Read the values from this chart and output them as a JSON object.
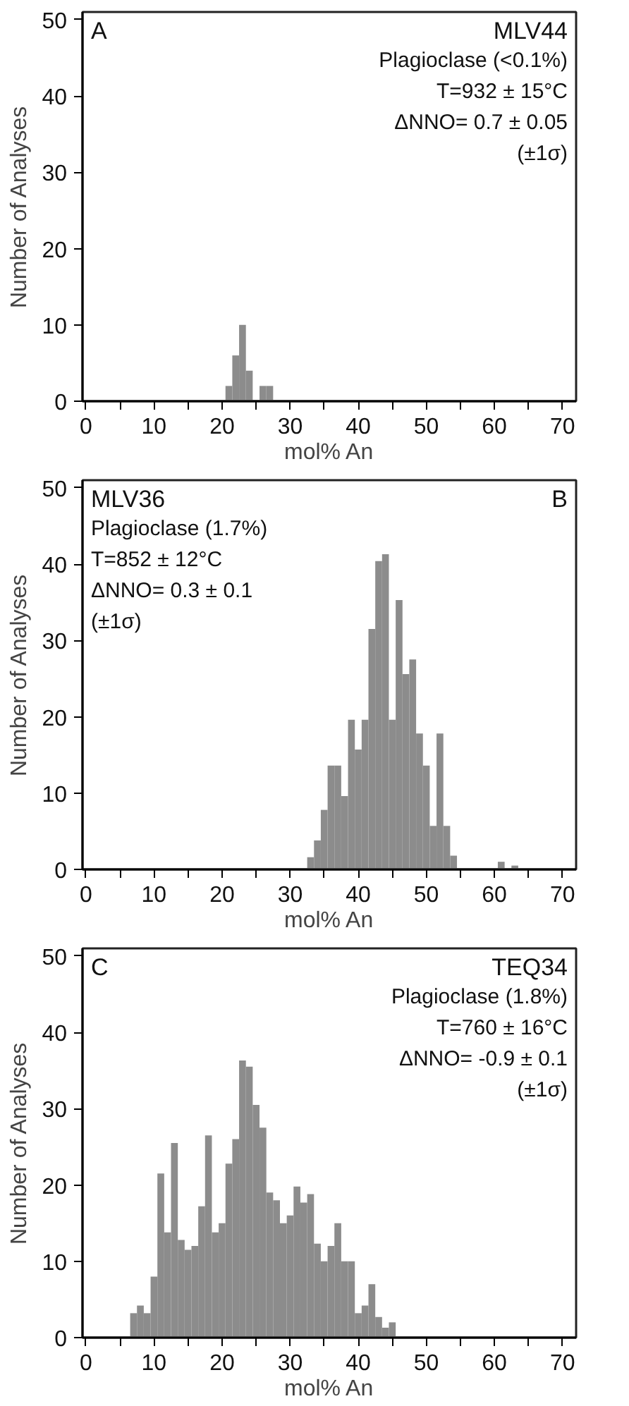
{
  "chart_data": [
    {
      "type": "histogram",
      "xlabel": "mol% An",
      "ylabel": "Number of Analyses",
      "color": "#8c8c8c",
      "bins": [
        20.5,
        21.5,
        22.5,
        23.5,
        24.5,
        25.5,
        26.5,
        27.5
      ],
      "values": [
        2,
        6,
        10,
        4,
        0,
        2,
        2
      ],
      "xlim": [
        -0.5,
        72
      ],
      "ylim": [
        0,
        51
      ],
      "xticks": [
        0,
        {
          "value": 5,
          "label": null
        },
        10,
        {
          "value": 15,
          "label": null
        },
        20,
        {
          "value": 25,
          "label": null
        },
        30,
        {
          "value": 35,
          "label": null
        },
        40,
        {
          "value": 45,
          "label": null
        },
        50,
        {
          "value": 55,
          "label": null
        },
        60,
        {
          "value": 65,
          "label": null
        },
        70
      ],
      "yticks": [
        0,
        10,
        20,
        30,
        40,
        50
      ],
      "grid": false,
      "annotations": [
        "A",
        "MLV44",
        "Plagioclase (<0.1%)",
        "T=932 ± 15°C",
        "ΔNNO= 0.7 ± 0.05",
        "(±1σ)"
      ]
    },
    {
      "type": "histogram",
      "xlabel": "mol% An",
      "ylabel": "Number of Analyses",
      "color": "#8c8c8c",
      "bins": [
        32.5,
        33.5,
        34.5,
        35.5,
        36.5,
        37.5,
        38.5,
        39.5,
        40.5,
        41.5,
        42.5,
        43.5,
        44.5,
        45.5,
        46.5,
        47.5,
        48.5,
        49.5,
        50.5,
        51.5,
        52.5,
        53.5,
        54.5,
        55.5,
        56.5,
        57.5,
        58.5,
        59.5,
        60.5,
        61.5,
        62.5,
        63.5
      ],
      "values": [
        1.6,
        3.8,
        7.8,
        13.6,
        13.6,
        9.6,
        19.6,
        15.7,
        19.6,
        31.5,
        40.4,
        41.3,
        19.6,
        35.3,
        25.6,
        27.5,
        17.8,
        13.6,
        5.7,
        17.8,
        5.7,
        1.8,
        0,
        0,
        0,
        0,
        0,
        0,
        1,
        0,
        0.5
      ],
      "xlim": [
        -0.5,
        72
      ],
      "ylim": [
        0,
        51
      ],
      "xticks": [
        0,
        {
          "value": 5,
          "label": null
        },
        10,
        {
          "value": 15,
          "label": null
        },
        20,
        {
          "value": 25,
          "label": null
        },
        30,
        {
          "value": 35,
          "label": null
        },
        40,
        {
          "value": 45,
          "label": null
        },
        50,
        {
          "value": 55,
          "label": null
        },
        60,
        {
          "value": 65,
          "label": null
        },
        70
      ],
      "yticks": [
        0,
        10,
        20,
        30,
        40,
        50
      ],
      "grid": false,
      "annotations": [
        "B",
        "MLV36",
        "Plagioclase (1.7%)",
        "T=852 ± 12°C",
        "ΔNNO= 0.3 ± 0.1",
        "(±1σ)"
      ]
    },
    {
      "type": "histogram",
      "xlabel": "mol% An",
      "ylabel": "Number of Analyses",
      "color": "#8c8c8c",
      "bins": [
        6.5,
        7.5,
        8.5,
        9.5,
        10.5,
        11.5,
        12.5,
        13.5,
        14.5,
        15.5,
        16.5,
        17.5,
        18.5,
        19.5,
        20.5,
        21.5,
        22.5,
        23.5,
        24.5,
        25.5,
        26.5,
        27.5,
        28.5,
        29.5,
        30.5,
        31.5,
        32.5,
        33.5,
        34.5,
        35.5,
        36.5,
        37.5,
        38.5,
        39.5,
        40.5,
        41.5,
        42.5,
        43.5,
        44.5,
        45.5
      ],
      "values": [
        3.2,
        4.2,
        3.2,
        8,
        21.5,
        13.8,
        25.5,
        12.8,
        11.5,
        12,
        17.2,
        26.5,
        13.8,
        15,
        22.8,
        26,
        36.3,
        35.5,
        30.5,
        27.5,
        19,
        18,
        15,
        16,
        19.8,
        17.7,
        18.8,
        12.3,
        10,
        12,
        15,
        10,
        10,
        3.2,
        4.2,
        7,
        2.7,
        1.3,
        2
      ],
      "xlim": [
        -0.5,
        72
      ],
      "ylim": [
        0,
        51
      ],
      "xticks": [
        0,
        {
          "value": 5,
          "label": null
        },
        10,
        {
          "value": 15,
          "label": null
        },
        20,
        {
          "value": 25,
          "label": null
        },
        30,
        {
          "value": 35,
          "label": null
        },
        40,
        {
          "value": 45,
          "label": null
        },
        50,
        {
          "value": 55,
          "label": null
        },
        60,
        {
          "value": 65,
          "label": null
        },
        70
      ],
      "yticks": [
        0,
        10,
        20,
        30,
        40,
        50
      ],
      "grid": false,
      "annotations": [
        "C",
        "TEQ34",
        "Plagioclase (1.8%)",
        "T=760 ± 16°C",
        "ΔNNO= -0.9 ± 0.1",
        "(±1σ)"
      ]
    }
  ]
}
